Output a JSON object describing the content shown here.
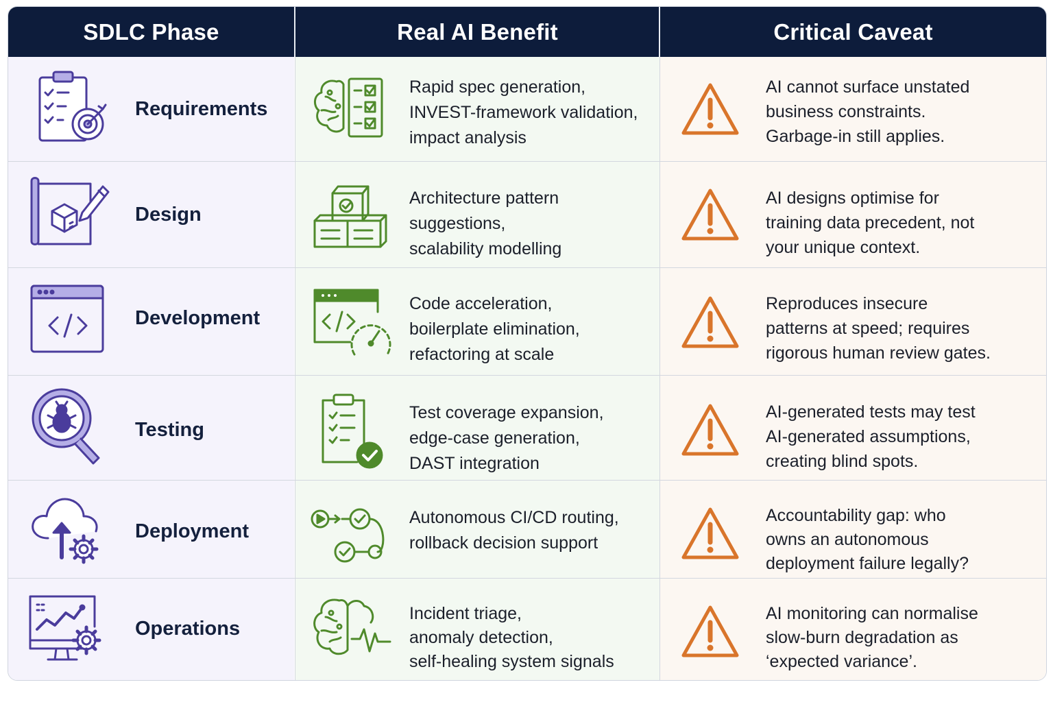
{
  "header": {
    "phase": "SDLC Phase",
    "benefit": "Real AI Benefit",
    "caveat": "Critical Caveat"
  },
  "rows": [
    {
      "phase": "Requirements",
      "phase_icon": "clipboard-target-icon",
      "benefit_icon": "brain-checklist-icon",
      "benefit": "Rapid spec generation,\nINVEST-framework validation,\nimpact analysis",
      "caveat": "AI cannot surface unstated\nbusiness constraints.\nGarbage-in still applies."
    },
    {
      "phase": "Design",
      "phase_icon": "blueprint-cube-pencil-icon",
      "benefit_icon": "stacked-blocks-icon",
      "benefit": "Architecture pattern\nsuggestions,\nscalability modelling",
      "caveat": "AI designs optimise for\ntraining data precedent, not\nyour unique context."
    },
    {
      "phase": "Development",
      "phase_icon": "code-window-icon",
      "benefit_icon": "code-speedometer-icon",
      "benefit": "Code acceleration,\nboilerplate elimination,\nrefactoring at scale",
      "caveat": "Reproduces insecure\npatterns at speed; requires\nrigorous human review gates."
    },
    {
      "phase": "Testing",
      "phase_icon": "bug-magnifier-icon",
      "benefit_icon": "clipboard-check-icon",
      "benefit": "Test coverage expansion,\nedge-case generation,\nDAST integration",
      "caveat": "AI-generated tests may test\nAI-generated assumptions,\ncreating blind spots."
    },
    {
      "phase": "Deployment",
      "phase_icon": "cloud-upload-gear-icon",
      "benefit_icon": "pipeline-flow-icon",
      "benefit": "Autonomous CI/CD routing,\nrollback decision support",
      "caveat": "Accountability gap: who\nowns an autonomous\ndeployment failure legally?"
    },
    {
      "phase": "Operations",
      "phase_icon": "monitor-chart-gear-icon",
      "benefit_icon": "brain-pulse-icon",
      "benefit": "Incident triage,\nanomaly detection,\nself-healing system signals",
      "caveat": "AI monitoring can normalise\nslow-burn degradation as\n‘expected variance’."
    }
  ],
  "caveat_icon": "warning-triangle-icon",
  "colors": {
    "header_bg": "#0d1c3b",
    "phase_icon": "#4a3c9c",
    "phase_accent": "#b5aee6",
    "benefit_icon": "#4f8a2b",
    "caveat_icon": "#d9752b"
  }
}
